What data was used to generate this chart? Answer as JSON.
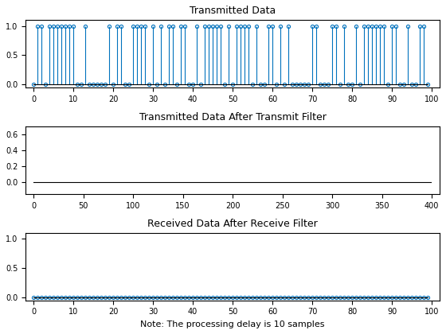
{
  "title1": "Transmitted Data",
  "title2": "Transmitted Data After Transmit Filter",
  "title3": "Received Data After Receive Filter",
  "xlabel3": "Note: The processing delay is 10 samples",
  "stem_color": "#0072BD",
  "marker_color": "#0072BD",
  "N": 100,
  "upsample_factor": 4,
  "seed": 0,
  "delay": 10,
  "ylim1": [
    -0.05,
    1.1
  ],
  "ylim2": [
    -0.15,
    0.7
  ],
  "ylim3": [
    -0.05,
    1.1
  ],
  "yticks1": [
    0,
    0.5,
    1
  ],
  "yticks2": [
    0,
    0.2,
    0.4,
    0.6
  ],
  "yticks3": [
    0,
    0.5,
    1
  ]
}
